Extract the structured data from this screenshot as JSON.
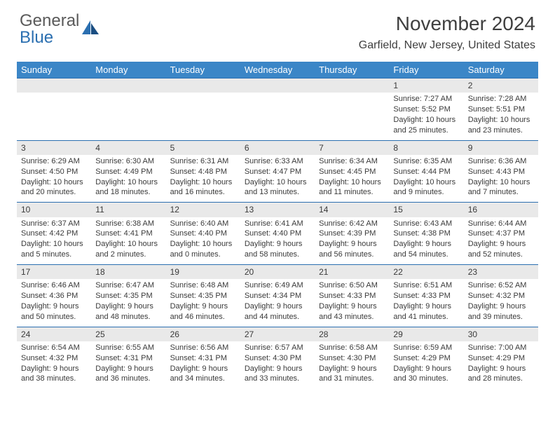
{
  "logo": {
    "text1": "General",
    "text2": "Blue"
  },
  "title": "November 2024",
  "location": "Garfield, New Jersey, United States",
  "header_bg": "#3b86c7",
  "header_fg": "#ffffff",
  "daynum_bg": "#e9e9e9",
  "rule_color": "#2b6fb0",
  "weekdays": [
    "Sunday",
    "Monday",
    "Tuesday",
    "Wednesday",
    "Thursday",
    "Friday",
    "Saturday"
  ],
  "weeks": [
    [
      null,
      null,
      null,
      null,
      null,
      {
        "n": "1",
        "sr": "7:27 AM",
        "ss": "5:52 PM",
        "dl": "10 hours and 25 minutes."
      },
      {
        "n": "2",
        "sr": "7:28 AM",
        "ss": "5:51 PM",
        "dl": "10 hours and 23 minutes."
      }
    ],
    [
      {
        "n": "3",
        "sr": "6:29 AM",
        "ss": "4:50 PM",
        "dl": "10 hours and 20 minutes."
      },
      {
        "n": "4",
        "sr": "6:30 AM",
        "ss": "4:49 PM",
        "dl": "10 hours and 18 minutes."
      },
      {
        "n": "5",
        "sr": "6:31 AM",
        "ss": "4:48 PM",
        "dl": "10 hours and 16 minutes."
      },
      {
        "n": "6",
        "sr": "6:33 AM",
        "ss": "4:47 PM",
        "dl": "10 hours and 13 minutes."
      },
      {
        "n": "7",
        "sr": "6:34 AM",
        "ss": "4:45 PM",
        "dl": "10 hours and 11 minutes."
      },
      {
        "n": "8",
        "sr": "6:35 AM",
        "ss": "4:44 PM",
        "dl": "10 hours and 9 minutes."
      },
      {
        "n": "9",
        "sr": "6:36 AM",
        "ss": "4:43 PM",
        "dl": "10 hours and 7 minutes."
      }
    ],
    [
      {
        "n": "10",
        "sr": "6:37 AM",
        "ss": "4:42 PM",
        "dl": "10 hours and 5 minutes."
      },
      {
        "n": "11",
        "sr": "6:38 AM",
        "ss": "4:41 PM",
        "dl": "10 hours and 2 minutes."
      },
      {
        "n": "12",
        "sr": "6:40 AM",
        "ss": "4:40 PM",
        "dl": "10 hours and 0 minutes."
      },
      {
        "n": "13",
        "sr": "6:41 AM",
        "ss": "4:40 PM",
        "dl": "9 hours and 58 minutes."
      },
      {
        "n": "14",
        "sr": "6:42 AM",
        "ss": "4:39 PM",
        "dl": "9 hours and 56 minutes."
      },
      {
        "n": "15",
        "sr": "6:43 AM",
        "ss": "4:38 PM",
        "dl": "9 hours and 54 minutes."
      },
      {
        "n": "16",
        "sr": "6:44 AM",
        "ss": "4:37 PM",
        "dl": "9 hours and 52 minutes."
      }
    ],
    [
      {
        "n": "17",
        "sr": "6:46 AM",
        "ss": "4:36 PM",
        "dl": "9 hours and 50 minutes."
      },
      {
        "n": "18",
        "sr": "6:47 AM",
        "ss": "4:35 PM",
        "dl": "9 hours and 48 minutes."
      },
      {
        "n": "19",
        "sr": "6:48 AM",
        "ss": "4:35 PM",
        "dl": "9 hours and 46 minutes."
      },
      {
        "n": "20",
        "sr": "6:49 AM",
        "ss": "4:34 PM",
        "dl": "9 hours and 44 minutes."
      },
      {
        "n": "21",
        "sr": "6:50 AM",
        "ss": "4:33 PM",
        "dl": "9 hours and 43 minutes."
      },
      {
        "n": "22",
        "sr": "6:51 AM",
        "ss": "4:33 PM",
        "dl": "9 hours and 41 minutes."
      },
      {
        "n": "23",
        "sr": "6:52 AM",
        "ss": "4:32 PM",
        "dl": "9 hours and 39 minutes."
      }
    ],
    [
      {
        "n": "24",
        "sr": "6:54 AM",
        "ss": "4:32 PM",
        "dl": "9 hours and 38 minutes."
      },
      {
        "n": "25",
        "sr": "6:55 AM",
        "ss": "4:31 PM",
        "dl": "9 hours and 36 minutes."
      },
      {
        "n": "26",
        "sr": "6:56 AM",
        "ss": "4:31 PM",
        "dl": "9 hours and 34 minutes."
      },
      {
        "n": "27",
        "sr": "6:57 AM",
        "ss": "4:30 PM",
        "dl": "9 hours and 33 minutes."
      },
      {
        "n": "28",
        "sr": "6:58 AM",
        "ss": "4:30 PM",
        "dl": "9 hours and 31 minutes."
      },
      {
        "n": "29",
        "sr": "6:59 AM",
        "ss": "4:29 PM",
        "dl": "9 hours and 30 minutes."
      },
      {
        "n": "30",
        "sr": "7:00 AM",
        "ss": "4:29 PM",
        "dl": "9 hours and 28 minutes."
      }
    ]
  ]
}
